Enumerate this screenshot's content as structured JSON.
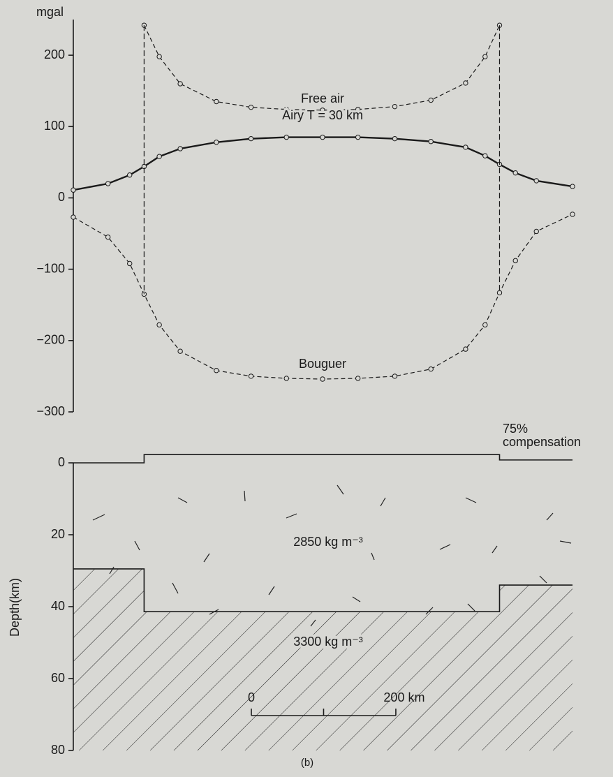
{
  "chart_data": [
    {
      "type": "line",
      "y_label": "mgal",
      "x": [
        -345,
        -297,
        -267,
        -247,
        -226,
        -197,
        -147,
        -99,
        -50,
        0,
        49,
        100,
        150,
        198,
        225,
        245,
        267,
        296,
        346
      ],
      "xlim": [
        -345,
        346
      ],
      "ylim": [
        -300,
        250
      ],
      "yticks": [
        {
          "value": -300,
          "label": "−300"
        },
        {
          "value": -200,
          "label": "−200"
        },
        {
          "value": -100,
          "label": "−100"
        },
        0,
        100,
        200
      ],
      "series": [
        {
          "name": "Free air",
          "color": "#1a1a1a",
          "dash": true,
          "values": [
            null,
            null,
            null,
            242,
            198,
            160,
            135,
            127,
            124,
            123,
            124,
            128,
            137,
            161,
            198,
            242,
            null,
            null,
            null
          ]
        },
        {
          "name": "Airy T = 30 km",
          "color": "#1a1a1a",
          "dash": false,
          "values": [
            11,
            20,
            32,
            44,
            58,
            69,
            78,
            83,
            85,
            85,
            85,
            83,
            79,
            71,
            59,
            47,
            35,
            24,
            16
          ]
        },
        {
          "name": "Bouguer",
          "color": "#1a1a1a",
          "dash": true,
          "values": [
            -27,
            -55,
            -92,
            -135,
            -178,
            -215,
            -242,
            -250,
            -253,
            -254,
            -253,
            -250,
            -240,
            -212,
            -178,
            -133,
            -88,
            -47,
            -23
          ]
        }
      ]
    },
    {
      "type": "section",
      "y_label": "Depth(km)",
      "x": [
        -345,
        -247,
        -247,
        245,
        245,
        346
      ],
      "xlim": [
        -345,
        346
      ],
      "ylim": [
        0,
        80
      ],
      "yticks": [
        0,
        20,
        40,
        60,
        80
      ],
      "series": [
        {
          "color": "#1a1a1a",
          "values": [
            0,
            0,
            -2.3,
            -2.3,
            -0.8,
            -0.8
          ]
        },
        {
          "color": "#1a1a1a",
          "values": [
            29.5,
            29.5,
            41.4,
            41.4,
            34,
            34
          ]
        }
      ],
      "annotations": [
        "2850 kg m⁻³",
        "3300 kg m⁻³"
      ],
      "compensation": [
        "75%",
        "compensation"
      ],
      "scale_bar": {
        "ticks": [
          0,
          {
            "value": 200,
            "label": "200 km"
          }
        ],
        "minor_ticks": [
          100
        ]
      },
      "caption": "(b)"
    }
  ]
}
